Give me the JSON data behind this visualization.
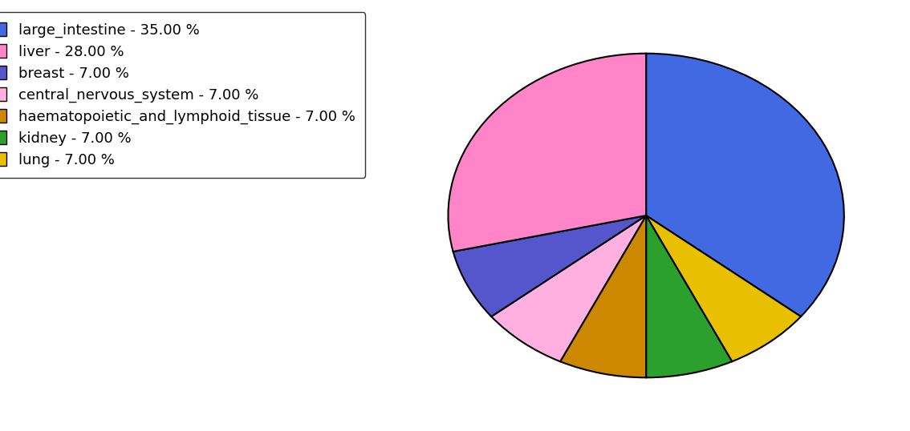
{
  "labels": [
    "large_intestine",
    "liver",
    "breast",
    "central_nervous_system",
    "haematopoietic_and_lymphoid_tissue",
    "kidney",
    "lung"
  ],
  "values": [
    35.0,
    28.0,
    7.0,
    7.0,
    7.0,
    7.0,
    7.0
  ],
  "colors": [
    "#4169E1",
    "#FF85C8",
    "#5555CC",
    "#FFB0E0",
    "#CC8800",
    "#2CA02C",
    "#E8C000"
  ],
  "legend_labels": [
    "large_intestine - 35.00 %",
    "liver - 28.00 %",
    "breast - 7.00 %",
    "central_nervous_system - 7.00 %",
    "haematopoietic_and_lymphoid_tissue - 7.00 %",
    "kidney - 7.00 %",
    "lung - 7.00 %"
  ],
  "pie_order": [
    0,
    1,
    2,
    3,
    4,
    5,
    6
  ],
  "startangle": 90,
  "counterclock": false,
  "figsize": [
    11.34,
    5.38
  ],
  "dpi": 100,
  "fontsize": 13
}
